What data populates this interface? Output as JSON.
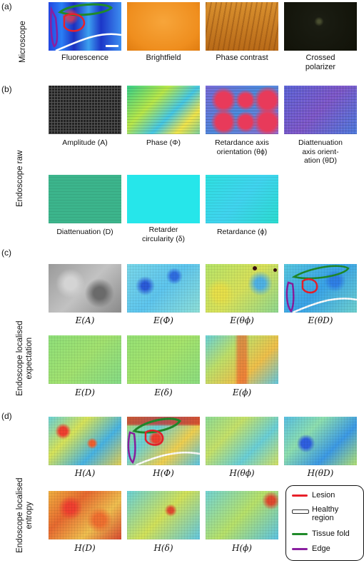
{
  "sections": {
    "a": {
      "label": "(a)",
      "row_label": "Microscope",
      "captions": [
        "Fluorescence",
        "Brightfield",
        "Phase contrast",
        "Crossed\npolarizer"
      ]
    },
    "b": {
      "label": "(b)",
      "row_label": "Endoscope raw",
      "captions": [
        "Amplitude (A)",
        "Phase (Φ)",
        "Retardance axis\norientation (θϕ)",
        "Diattenuation\naxis orient-\nation (θD)",
        "Diattenuation (D)",
        "Retarder\ncircularity (δ)",
        "Retardance (ϕ)"
      ]
    },
    "c": {
      "label": "(c)",
      "row_label_1": "Endoscope localised",
      "row_label_2": "expectation",
      "captions": [
        "E(A)",
        "E(Φ)",
        "E(θϕ)",
        "E(θD)",
        "E(D)",
        "E(δ)",
        "E(ϕ)"
      ]
    },
    "d": {
      "label": "(d)",
      "row_label_1": "Endoscope localised",
      "row_label_2": "entropy",
      "captions": [
        "H(A)",
        "H(Φ)",
        "H(θϕ)",
        "H(θD)",
        "H(D)",
        "H(δ)",
        "H(ϕ)"
      ]
    }
  },
  "legend": {
    "items": [
      {
        "label": "Lesion",
        "color": "#e8202a"
      },
      {
        "label": "Healthy\nregion",
        "color": "#ffffff"
      },
      {
        "label": "Tissue fold",
        "color": "#1f8a2a"
      },
      {
        "label": "Edge",
        "color": "#8a1fa0"
      }
    ]
  }
}
